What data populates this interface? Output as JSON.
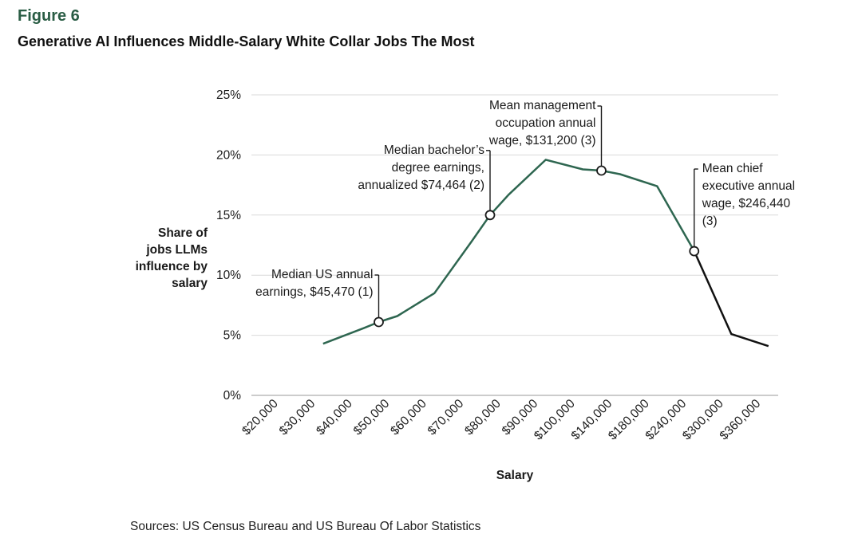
{
  "figure_label": "Figure 6",
  "title": "Generative AI Influences Middle-Salary White Collar Jobs The Most",
  "source": "Sources: US Census Bureau and US Bureau Of Labor Statistics",
  "colors": {
    "accent": "#2a5d45",
    "line_main": "#2e6650",
    "line_tail": "#111111",
    "grid": "#d9d9d9"
  },
  "chart_data": {
    "type": "line",
    "xlabel": "Salary",
    "ylabel_lines": [
      "Share of",
      "jobs LLMs",
      "influence by",
      "salary"
    ],
    "categories": [
      "$20,000",
      "$30,000",
      "$40,000",
      "$50,000",
      "$60,000",
      "$70,000",
      "$80,000",
      "$90,000",
      "$100,000",
      "$140,000",
      "$180,000",
      "$240,000",
      "$300,000",
      "$360,000"
    ],
    "y_ticks": [
      "0%",
      "5%",
      "10%",
      "15%",
      "20%",
      "25%"
    ],
    "ylim": [
      0,
      25
    ],
    "grid": "horizontal",
    "series": [
      {
        "points": [
          {
            "x": 1.5,
            "y": 4.3
          },
          {
            "x": 2.6,
            "y": 5.6
          },
          {
            "x": 3.0,
            "y": 6.1
          },
          {
            "x": 3.5,
            "y": 6.6
          },
          {
            "x": 4.5,
            "y": 8.5
          },
          {
            "x": 5.5,
            "y": 12.8
          },
          {
            "x": 6.0,
            "y": 15.0
          },
          {
            "x": 6.5,
            "y": 16.7
          },
          {
            "x": 7.5,
            "y": 19.6
          },
          {
            "x": 8.5,
            "y": 18.8
          },
          {
            "x": 9.0,
            "y": 18.7
          },
          {
            "x": 9.5,
            "y": 18.4
          },
          {
            "x": 10.5,
            "y": 17.4
          },
          {
            "x": 11.5,
            "y": 12.0
          },
          {
            "x": 12.5,
            "y": 5.1
          },
          {
            "x": 13.5,
            "y": 4.1
          }
        ],
        "color_change_at_x": 11.5
      }
    ],
    "annotations": [
      {
        "x": 3.0,
        "y": 6.1,
        "lines": [
          "Median US annual",
          "earnings, $45,470 (1)"
        ],
        "side": "left"
      },
      {
        "x": 6.0,
        "y": 15.0,
        "lines": [
          "Median bachelor’s",
          "degree earnings,",
          "annualized $74,464 (2)"
        ],
        "side": "left"
      },
      {
        "x": 9.0,
        "y": 18.7,
        "lines": [
          "Mean management",
          "occupation annual",
          "wage, $131,200 (3)"
        ],
        "side": "left"
      },
      {
        "x": 11.5,
        "y": 12.0,
        "lines": [
          "Mean chief",
          "executive annual",
          "wage, $246,440",
          "(3)"
        ],
        "side": "right"
      }
    ]
  }
}
